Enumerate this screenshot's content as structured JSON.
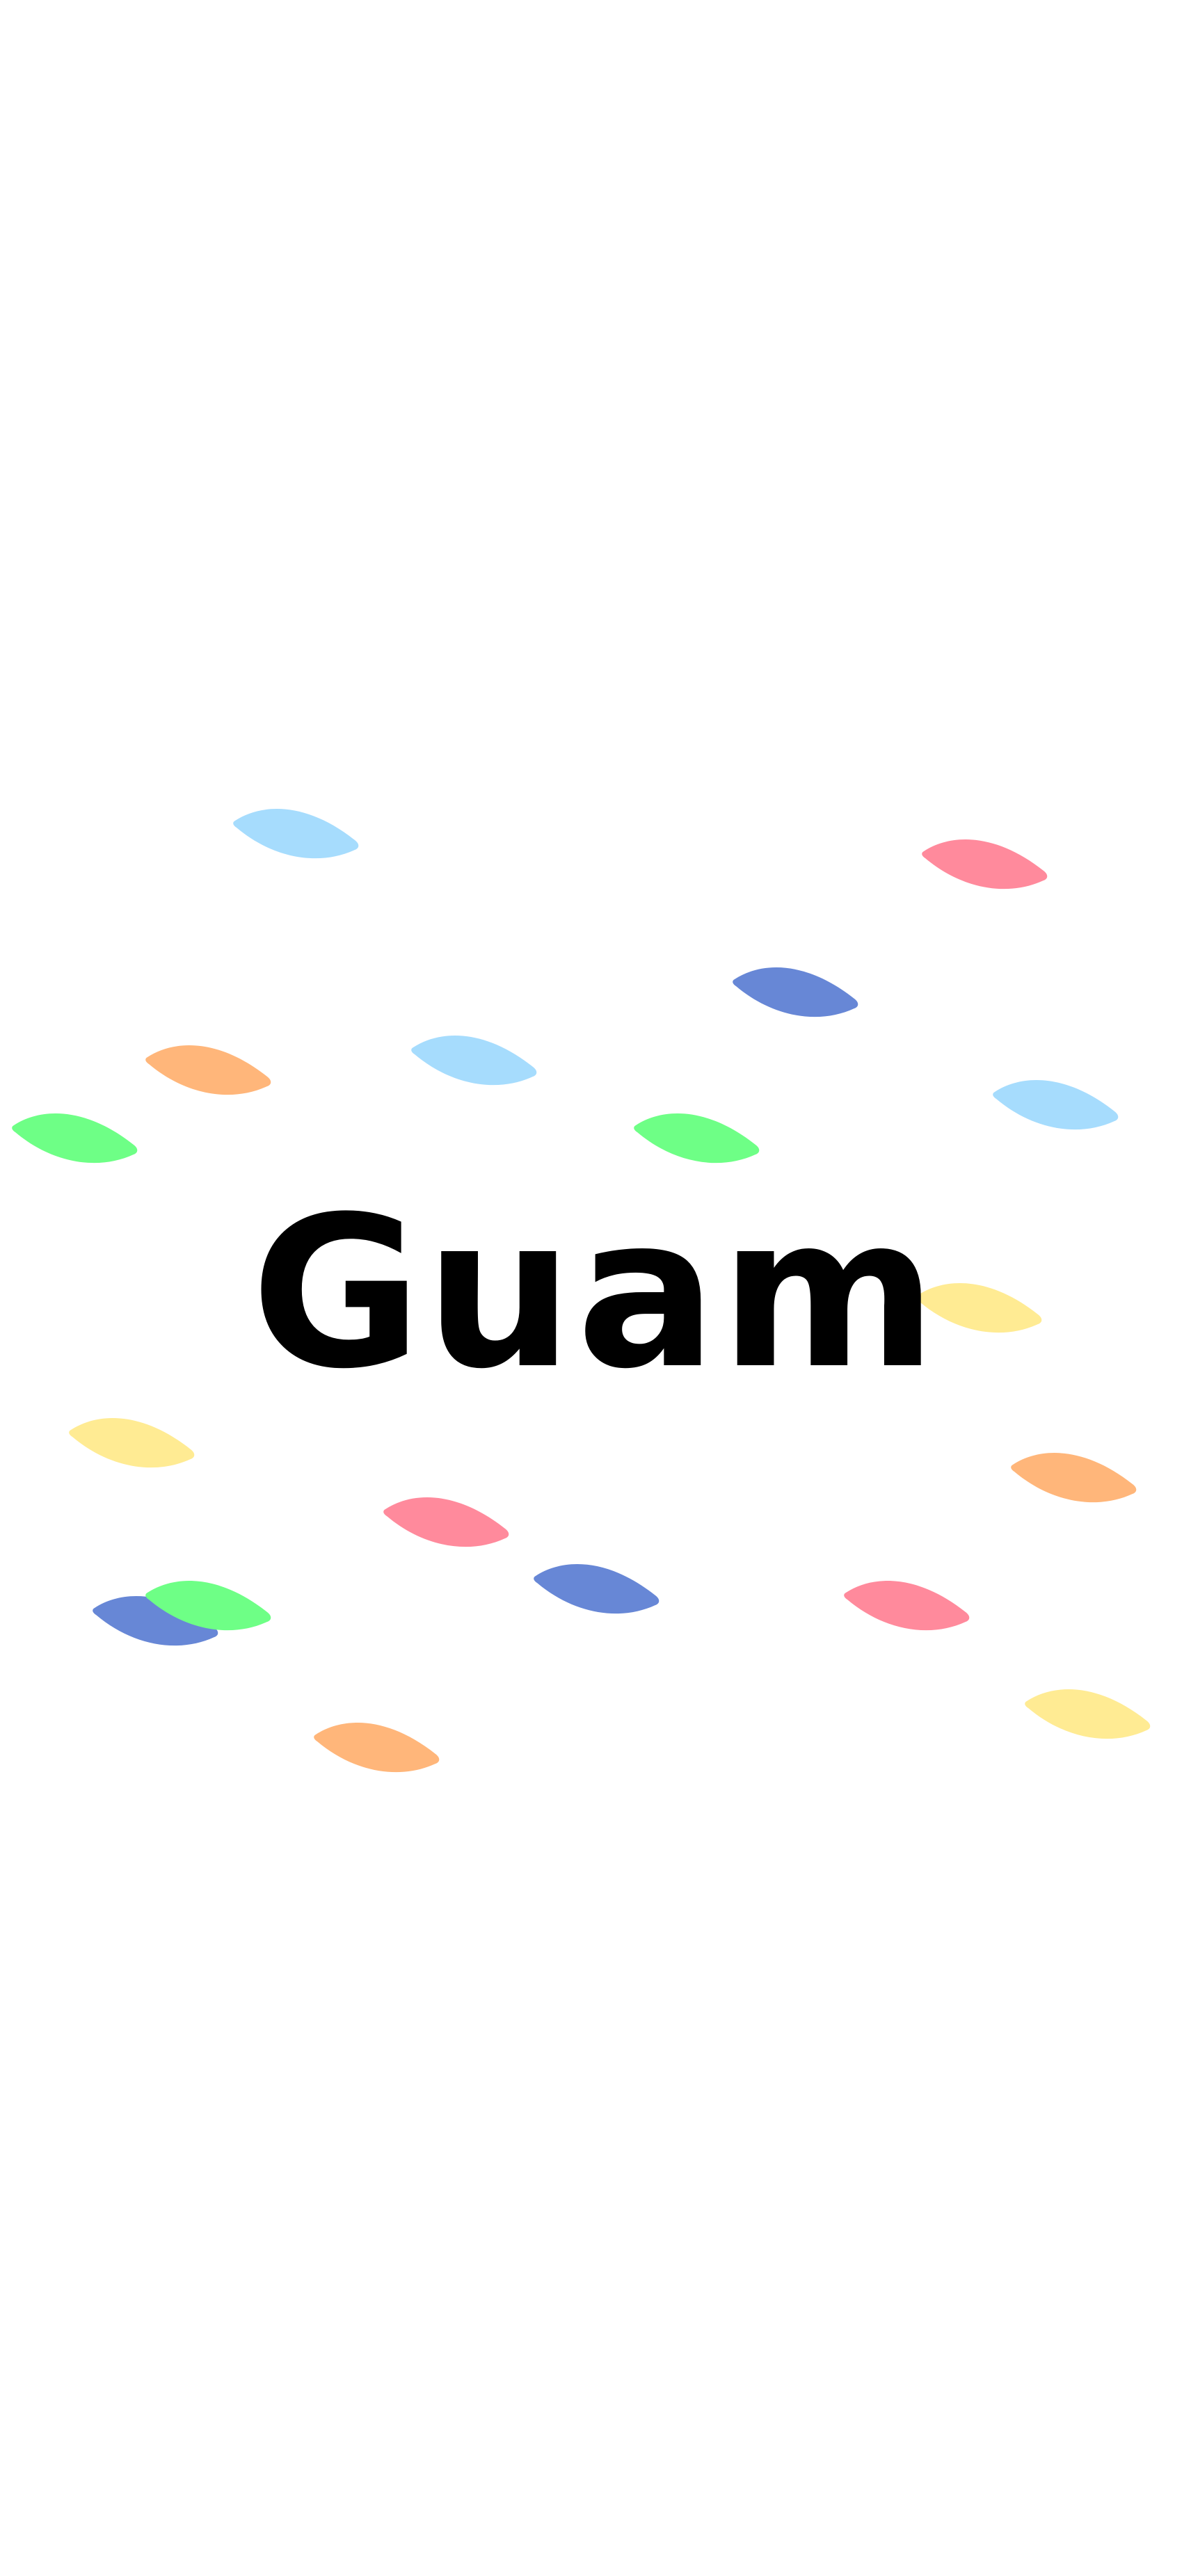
{
  "page": {
    "title": "Guam",
    "background": "#ffffff",
    "text_color": "#000000"
  },
  "palette": {
    "light-blue": "#a6dcfd",
    "pink": "#ff8a9c",
    "blue": "#6787d6",
    "orange": "#ffb67a",
    "green": "#6eff86",
    "yellow": "#ffeb93"
  },
  "leaves": [
    {
      "name": "leaf-light-blue-1",
      "color": "light-blue"
    },
    {
      "name": "leaf-pink-1",
      "color": "pink"
    },
    {
      "name": "leaf-blue-1",
      "color": "blue"
    },
    {
      "name": "leaf-orange-1",
      "color": "orange"
    },
    {
      "name": "leaf-light-blue-2",
      "color": "light-blue"
    },
    {
      "name": "leaf-light-blue-3",
      "color": "light-blue"
    },
    {
      "name": "leaf-green-1",
      "color": "green"
    },
    {
      "name": "leaf-green-2",
      "color": "green"
    },
    {
      "name": "leaf-yellow-1",
      "color": "yellow"
    },
    {
      "name": "leaf-yellow-2",
      "color": "yellow"
    },
    {
      "name": "leaf-orange-2",
      "color": "orange"
    },
    {
      "name": "leaf-pink-2",
      "color": "pink"
    },
    {
      "name": "leaf-blue-2",
      "color": "blue"
    },
    {
      "name": "leaf-blue-3",
      "color": "blue"
    },
    {
      "name": "leaf-green-3",
      "color": "green"
    },
    {
      "name": "leaf-pink-3",
      "color": "pink"
    },
    {
      "name": "leaf-yellow-3",
      "color": "yellow"
    },
    {
      "name": "leaf-orange-3",
      "color": "orange"
    }
  ]
}
